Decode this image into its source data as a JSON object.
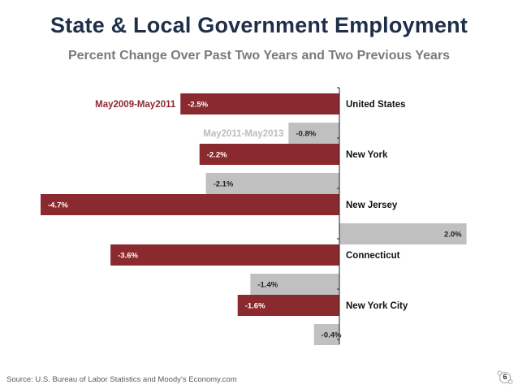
{
  "title": "State & Local Government Employment",
  "subtitle": "Percent Change Over Past Two Years and Two Previous Years",
  "footer": "Source: U.S. Bureau of Labor Statistics and Moody’s Economy.com",
  "page_number": "6",
  "colors": {
    "series1": "#8b2a2e",
    "series2": "#c0c0c0",
    "title": "#1f2f4a",
    "subtitle": "#7a7a7a"
  },
  "chart_data": {
    "type": "bar",
    "orientation": "horizontal",
    "title": "State & Local Government Employment",
    "subtitle": "Percent Change Over Past Two Years and Two Previous Years",
    "categories": [
      "United States",
      "New York",
      "New Jersey",
      "Connecticut",
      "New York City"
    ],
    "series": [
      {
        "name": "May2009-May2011",
        "values": [
          -2.5,
          -2.2,
          -4.7,
          -3.6,
          -1.6
        ],
        "labels": [
          "-2.5%",
          "-2.2%",
          "-4.7%",
          "-3.6%",
          "-1.6%"
        ]
      },
      {
        "name": "May2011-May2013",
        "values": [
          -0.8,
          -2.1,
          2.0,
          -1.4,
          -0.4
        ],
        "labels": [
          "-0.8%",
          "-2.1%",
          "2.0%",
          "-1.4%",
          "-0.4%"
        ]
      }
    ],
    "xlim": [
      -4.7,
      2.0
    ],
    "legend": "inline-near-first-category",
    "grid": false
  }
}
